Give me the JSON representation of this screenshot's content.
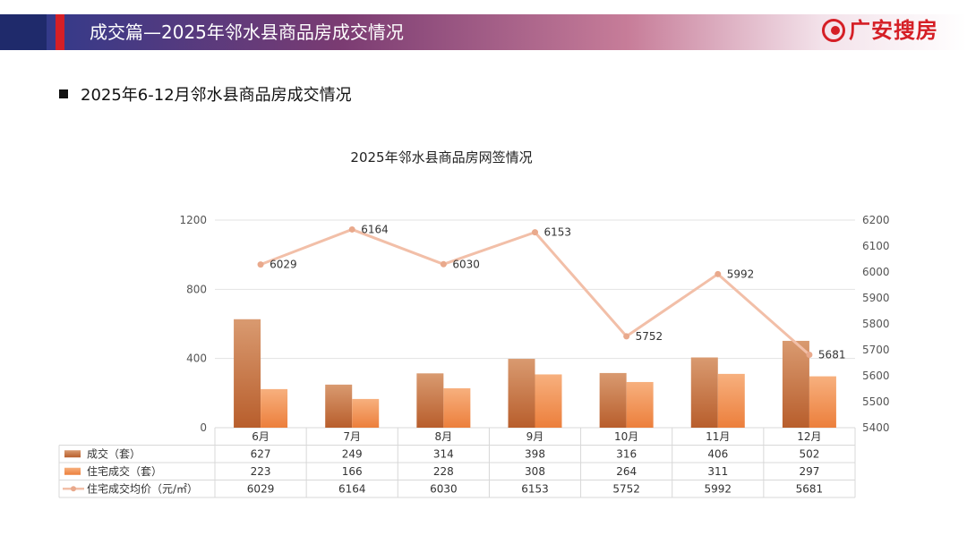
{
  "header": {
    "title": "成交篇—2025年邻水县商品房成交情况",
    "logo_text": "广安搜房",
    "logo_icon": "fang-logo-icon"
  },
  "section": {
    "heading": "2025年6-12月邻水县商品房成交情况"
  },
  "colors": {
    "bar1": "#c9703a",
    "bar2": "#f0924f",
    "line": "#f2bfa8"
  },
  "chart_data": {
    "type": "bar",
    "title": "2025年邻水县商品房网签情况",
    "categories": [
      "6月",
      "7月",
      "8月",
      "9月",
      "10月",
      "11月",
      "12月"
    ],
    "series": [
      {
        "name": "成交（套）",
        "type": "bar",
        "axis": "left",
        "values": [
          627,
          249,
          314,
          398,
          316,
          406,
          502
        ]
      },
      {
        "name": "住宅成交（套）",
        "type": "bar",
        "axis": "left",
        "values": [
          223,
          166,
          228,
          308,
          264,
          311,
          297
        ]
      },
      {
        "name": "住宅成交均价（元/㎡）",
        "type": "line",
        "axis": "right",
        "values": [
          6029,
          6164,
          6030,
          6153,
          5752,
          5992,
          5681
        ]
      }
    ],
    "y_left": {
      "min": 0,
      "max": 1200,
      "ticks": [
        0,
        400,
        800,
        1200
      ]
    },
    "y_right": {
      "min": 5400,
      "max": 6200,
      "ticks": [
        5400,
        5500,
        5600,
        5700,
        5800,
        5900,
        6000,
        6100,
        6200
      ]
    },
    "grid": true,
    "legend": "data-table"
  }
}
